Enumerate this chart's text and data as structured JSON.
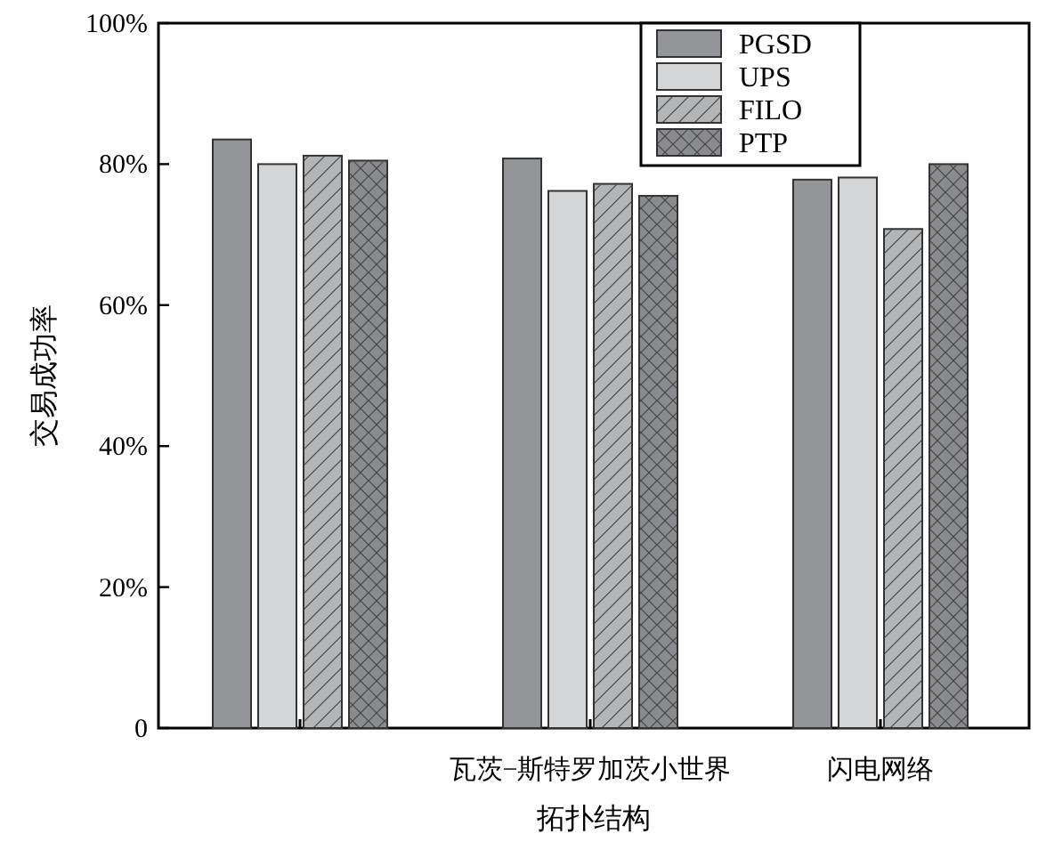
{
  "chart_data": {
    "type": "bar",
    "xlabel": "拓扑结构",
    "ylabel": "交易成功率",
    "categories": [
      null,
      "瓦茨−斯特罗加茨小世界",
      "闪电网络"
    ],
    "series": [
      {
        "name": "PGSD",
        "color": "#939598",
        "values": [
          83.5,
          80.8,
          77.8
        ]
      },
      {
        "name": "UPS",
        "color": "#d4d5d7",
        "values": [
          80.0,
          76.2,
          78.1
        ]
      },
      {
        "name": "FILO",
        "color": "#b4b5b7",
        "values": [
          81.2,
          77.2,
          70.8
        ]
      },
      {
        "name": "PTP",
        "color": "#8a8b8e",
        "values": [
          80.5,
          75.5,
          80.0
        ]
      }
    ],
    "ylim": [
      0,
      100
    ],
    "yticks": [
      {
        "value": 0,
        "label": "0"
      },
      {
        "value": 20,
        "label": "20%"
      },
      {
        "value": 40,
        "label": "40%"
      },
      {
        "value": 60,
        "label": "60%"
      },
      {
        "value": 80,
        "label": "80%"
      },
      {
        "value": 100,
        "label": "100%"
      }
    ],
    "grid": false,
    "legend": "top right"
  }
}
